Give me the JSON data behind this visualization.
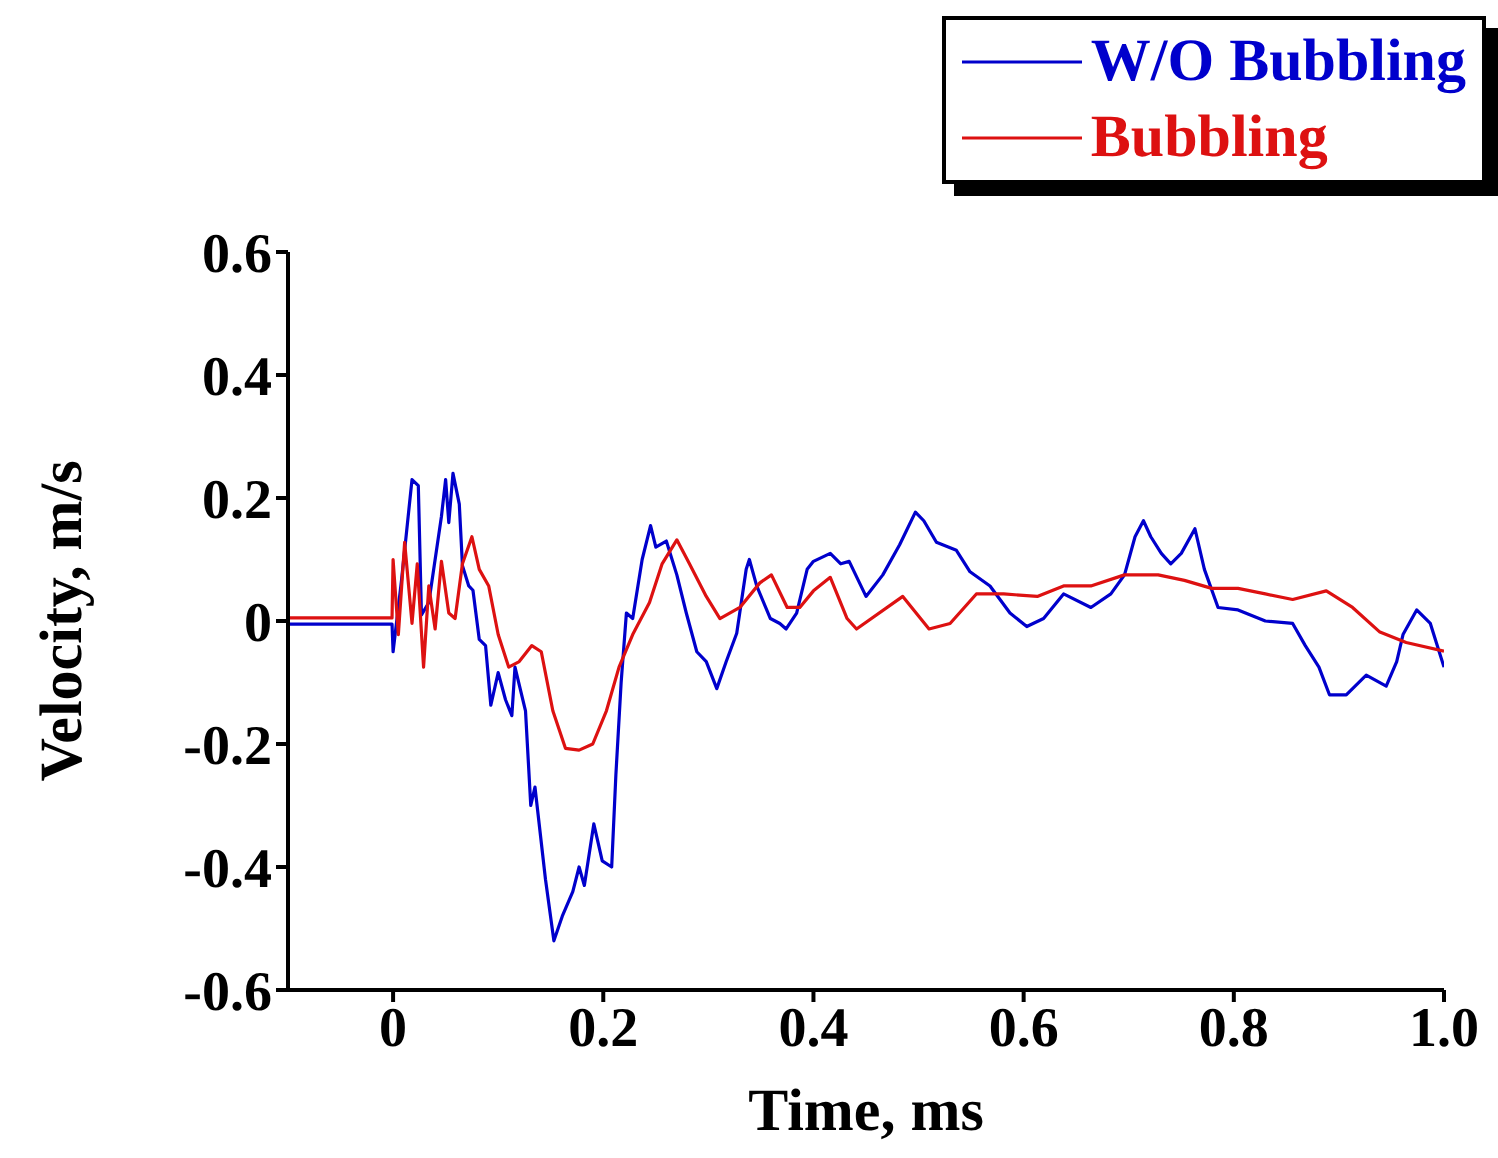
{
  "chart_data": {
    "type": "line",
    "xlabel": "Time, ms",
    "ylabel": "Velocity, m/s",
    "xlim": [
      -0.1,
      1.0
    ],
    "xticks": [
      0,
      0.2,
      0.4,
      0.6,
      0.8,
      {
        "value": 1,
        "label": "1.0"
      }
    ],
    "ylim": [
      -0.6,
      0.6
    ],
    "yticks": [
      -0.6,
      -0.4,
      -0.2,
      0,
      0.2,
      0.4,
      0.6
    ],
    "legend": "top right",
    "marker": "none",
    "line_style": "solid",
    "grid": false,
    "series": [
      {
        "name": "W/O Bubbling",
        "color": "#0000cc",
        "x": [
          -0.1,
          -0.05,
          -0.001,
          0.0,
          0.008,
          0.018,
          0.024,
          0.027,
          0.034,
          0.046,
          0.05,
          0.053,
          0.057,
          0.063,
          0.066,
          0.072,
          0.076,
          0.082,
          0.088,
          0.093,
          0.1,
          0.107,
          0.113,
          0.116,
          0.126,
          0.131,
          0.135,
          0.145,
          0.153,
          0.161,
          0.171,
          0.177,
          0.182,
          0.191,
          0.199,
          0.208,
          0.212,
          0.217,
          0.222,
          0.228,
          0.237,
          0.245,
          0.25,
          0.26,
          0.27,
          0.279,
          0.289,
          0.298,
          0.308,
          0.317,
          0.327,
          0.336,
          0.339,
          0.346,
          0.359,
          0.368,
          0.374,
          0.384,
          0.394,
          0.4,
          0.416,
          0.426,
          0.434,
          0.45,
          0.466,
          0.482,
          0.497,
          0.505,
          0.517,
          0.536,
          0.549,
          0.568,
          0.587,
          0.603,
          0.619,
          0.638,
          0.664,
          0.683,
          0.696,
          0.706,
          0.714,
          0.721,
          0.731,
          0.74,
          0.75,
          0.763,
          0.772,
          0.785,
          0.804,
          0.83,
          0.856,
          0.868,
          0.881,
          0.891,
          0.907,
          0.926,
          0.945,
          0.955,
          0.961,
          0.974,
          0.987,
          1.0
        ],
        "values": [
          -0.005,
          -0.005,
          -0.005,
          -0.05,
          0.066,
          0.23,
          0.22,
          0.01,
          0.03,
          0.17,
          0.23,
          0.16,
          0.24,
          0.19,
          0.09,
          0.057,
          0.05,
          -0.03,
          -0.04,
          -0.137,
          -0.084,
          -0.128,
          -0.154,
          -0.075,
          -0.146,
          -0.3,
          -0.27,
          -0.42,
          -0.52,
          -0.48,
          -0.44,
          -0.4,
          -0.43,
          -0.33,
          -0.39,
          -0.4,
          -0.25,
          -0.1,
          0.013,
          0.004,
          0.1,
          0.155,
          0.12,
          0.13,
          0.075,
          0.013,
          -0.05,
          -0.066,
          -0.11,
          -0.066,
          -0.02,
          0.084,
          0.1,
          0.057,
          0.004,
          -0.004,
          -0.013,
          0.013,
          0.084,
          0.097,
          0.11,
          0.093,
          0.097,
          0.04,
          0.075,
          0.124,
          0.177,
          0.163,
          0.128,
          0.115,
          0.08,
          0.057,
          0.013,
          -0.009,
          0.004,
          0.044,
          0.022,
          0.044,
          0.075,
          0.137,
          0.163,
          0.137,
          0.11,
          0.093,
          0.11,
          0.15,
          0.084,
          0.022,
          0.018,
          0,
          -0.004,
          -0.04,
          -0.075,
          -0.12,
          -0.12,
          -0.088,
          -0.106,
          -0.066,
          -0.022,
          0.018,
          -0.004,
          -0.075
        ]
      },
      {
        "name": "Bubbling",
        "color": "#dd1111",
        "x": [
          -0.1,
          -0.05,
          -0.001,
          0.0,
          0.005,
          0.011,
          0.018,
          0.023,
          0.029,
          0.034,
          0.04,
          0.046,
          0.053,
          0.059,
          0.066,
          0.075,
          0.082,
          0.091,
          0.1,
          0.11,
          0.12,
          0.132,
          0.141,
          0.152,
          0.164,
          0.177,
          0.19,
          0.203,
          0.215,
          0.228,
          0.244,
          0.256,
          0.27,
          0.282,
          0.298,
          0.311,
          0.33,
          0.349,
          0.36,
          0.375,
          0.387,
          0.4,
          0.416,
          0.432,
          0.441,
          0.485,
          0.51,
          0.53,
          0.555,
          0.581,
          0.613,
          0.638,
          0.664,
          0.696,
          0.728,
          0.753,
          0.779,
          0.804,
          0.83,
          0.856,
          0.888,
          0.913,
          0.939,
          0.964,
          1.0
        ],
        "values": [
          0.005,
          0.005,
          0.005,
          0.1,
          -0.022,
          0.128,
          -0.004,
          0.093,
          -0.075,
          0.057,
          -0.013,
          0.097,
          0.013,
          0.004,
          0.093,
          0.137,
          0.084,
          0.057,
          -0.022,
          -0.075,
          -0.066,
          -0.04,
          -0.05,
          -0.146,
          -0.207,
          -0.21,
          -0.2,
          -0.146,
          -0.075,
          -0.022,
          0.03,
          0.093,
          0.132,
          0.093,
          0.04,
          0.004,
          0.022,
          0.062,
          0.075,
          0.022,
          0.022,
          0.049,
          0.071,
          0.004,
          -0.013,
          0.04,
          -0.013,
          -0.004,
          0.044,
          0.044,
          0.04,
          0.057,
          0.057,
          0.075,
          0.075,
          0.066,
          0.053,
          0.053,
          0.044,
          0.035,
          0.049,
          0.022,
          -0.018,
          -0.035,
          -0.049
        ]
      }
    ]
  }
}
